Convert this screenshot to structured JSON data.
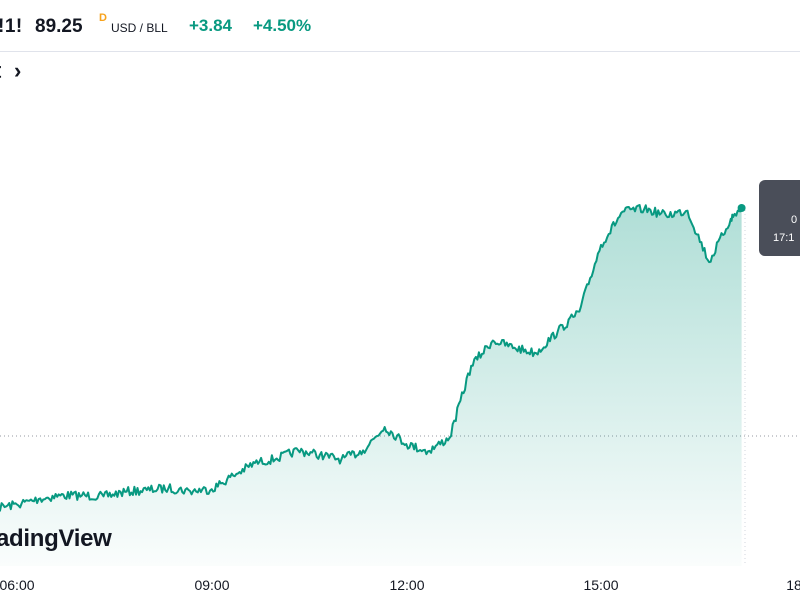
{
  "header": {
    "symbol": "!1!",
    "price": "89.25",
    "price_flag": "D",
    "units": "USD / BLL",
    "change": "+3.84",
    "change_pct": "+4.50%"
  },
  "subtitle": "t",
  "subtitle_chevron": "›",
  "watermark": "adingView",
  "tooltip": {
    "line1": "0",
    "line2": "17:1"
  },
  "colors": {
    "line": "#089981",
    "fill_top": "#089981",
    "baseline_dots": "#9598a1",
    "header_accent": "#f7a21b",
    "tooltip_bg": "#4a4e59"
  },
  "chart_data": {
    "type": "area",
    "x_tick_labels": [
      "06:00",
      "09:00",
      "12:00",
      "15:00",
      "18:"
    ],
    "grid": false,
    "last_price": 89.25,
    "series": [
      {
        "x": [
          "04:40",
          "05:00",
          "05:20",
          "05:40",
          "06:00",
          "06:20",
          "06:40",
          "07:00",
          "07:20",
          "07:40",
          "08:00",
          "08:20",
          "08:40",
          "09:00",
          "09:20",
          "09:40",
          "10:00",
          "10:20",
          "10:40",
          "11:00",
          "11:20",
          "11:40",
          "12:00",
          "12:20",
          "12:40",
          "13:00",
          "13:20",
          "13:40",
          "14:00",
          "14:20",
          "14:40",
          "15:00",
          "15:20",
          "15:40",
          "16:00",
          "16:20",
          "16:40",
          "17:00",
          "17:10"
        ],
        "values": [
          85.78,
          85.84,
          85.86,
          85.92,
          85.96,
          86.02,
          86.06,
          86.06,
          86.05,
          86.1,
          86.12,
          86.14,
          86.11,
          86.13,
          86.28,
          86.42,
          86.47,
          86.56,
          86.51,
          86.46,
          86.56,
          86.82,
          86.63,
          86.55,
          86.7,
          87.5,
          87.78,
          87.7,
          87.64,
          87.88,
          88.1,
          88.84,
          89.21,
          89.24,
          89.17,
          89.22,
          88.65,
          89.13,
          89.25
        ]
      }
    ]
  }
}
